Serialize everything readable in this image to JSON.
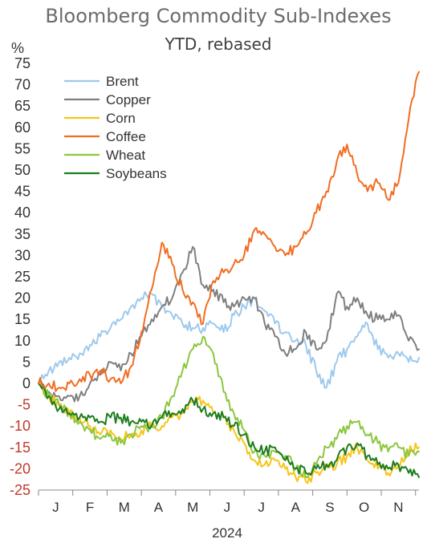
{
  "chart_data": {
    "type": "line",
    "title": "Bloomberg Commodity Sub-Indexes",
    "subtitle": "YTD, rebased",
    "ylabel": "%",
    "xlabel": "2024",
    "ylim": [
      -25,
      75
    ],
    "yticks": [
      75,
      70,
      65,
      60,
      55,
      50,
      45,
      40,
      35,
      30,
      25,
      20,
      15,
      10,
      5,
      0,
      -5,
      -10,
      -15,
      -20,
      -25
    ],
    "x_tick_labels": [
      "J",
      "F",
      "M",
      "A",
      "M",
      "J",
      "J",
      "A",
      "S",
      "O",
      "N"
    ],
    "negative_tick_color": "#c0392b",
    "positive_tick_color": "#333333",
    "legend_position": "top-left",
    "grid": false,
    "x_unit": "months since 1 Jan 2024",
    "series": [
      {
        "name": "Brent",
        "color": "#9ec9ec",
        "points": [
          [
            0,
            0
          ],
          [
            0.3,
            3
          ],
          [
            0.6,
            5
          ],
          [
            0.9,
            6
          ],
          [
            1.2,
            7
          ],
          [
            1.5,
            9
          ],
          [
            1.8,
            11
          ],
          [
            2.1,
            13
          ],
          [
            2.4,
            15
          ],
          [
            2.7,
            18
          ],
          [
            3.0,
            20
          ],
          [
            3.3,
            21
          ],
          [
            3.6,
            18
          ],
          [
            3.9,
            16
          ],
          [
            4.2,
            14
          ],
          [
            4.5,
            13
          ],
          [
            4.8,
            13
          ],
          [
            5.1,
            14
          ],
          [
            5.4,
            12
          ],
          [
            5.7,
            16
          ],
          [
            6.0,
            18
          ],
          [
            6.3,
            20
          ],
          [
            6.6,
            17
          ],
          [
            6.9,
            14
          ],
          [
            7.2,
            12
          ],
          [
            7.5,
            10
          ],
          [
            7.8,
            9
          ],
          [
            8.1,
            3
          ],
          [
            8.4,
            -1
          ],
          [
            8.7,
            5
          ],
          [
            9.0,
            8
          ],
          [
            9.3,
            11
          ],
          [
            9.6,
            14
          ],
          [
            9.9,
            8
          ],
          [
            10.2,
            6
          ],
          [
            10.5,
            7
          ],
          [
            10.8,
            5
          ],
          [
            11.1,
            6
          ]
        ]
      },
      {
        "name": "Copper",
        "color": "#7f7f7f",
        "points": [
          [
            0,
            0
          ],
          [
            0.3,
            -2
          ],
          [
            0.6,
            -3
          ],
          [
            0.9,
            -3
          ],
          [
            1.2,
            -3
          ],
          [
            1.5,
            0
          ],
          [
            1.8,
            2
          ],
          [
            2.1,
            5
          ],
          [
            2.4,
            3
          ],
          [
            2.7,
            7
          ],
          [
            3.0,
            11
          ],
          [
            3.3,
            15
          ],
          [
            3.6,
            18
          ],
          [
            3.9,
            20
          ],
          [
            4.2,
            26
          ],
          [
            4.5,
            32
          ],
          [
            4.8,
            23
          ],
          [
            5.1,
            22
          ],
          [
            5.4,
            19
          ],
          [
            5.7,
            18
          ],
          [
            6.0,
            20
          ],
          [
            6.3,
            20
          ],
          [
            6.6,
            14
          ],
          [
            6.9,
            11
          ],
          [
            7.2,
            7
          ],
          [
            7.5,
            8
          ],
          [
            7.8,
            12
          ],
          [
            8.1,
            8
          ],
          [
            8.4,
            10
          ],
          [
            8.7,
            21
          ],
          [
            9.0,
            18
          ],
          [
            9.3,
            20
          ],
          [
            9.6,
            16
          ],
          [
            9.9,
            15
          ],
          [
            10.2,
            15
          ],
          [
            10.5,
            16
          ],
          [
            10.8,
            10
          ],
          [
            11.1,
            8
          ]
        ]
      },
      {
        "name": "Corn",
        "color": "#f5c518",
        "points": [
          [
            0,
            0
          ],
          [
            0.3,
            -3
          ],
          [
            0.6,
            -5
          ],
          [
            0.9,
            -7
          ],
          [
            1.2,
            -8
          ],
          [
            1.5,
            -10
          ],
          [
            1.8,
            -12
          ],
          [
            2.1,
            -11
          ],
          [
            2.4,
            -13
          ],
          [
            2.7,
            -12
          ],
          [
            3.0,
            -11
          ],
          [
            3.3,
            -10
          ],
          [
            3.6,
            -10
          ],
          [
            3.9,
            -8
          ],
          [
            4.2,
            -7
          ],
          [
            4.5,
            -4
          ],
          [
            4.8,
            -4
          ],
          [
            5.1,
            -7
          ],
          [
            5.4,
            -8
          ],
          [
            5.7,
            -11
          ],
          [
            6.0,
            -14
          ],
          [
            6.3,
            -18
          ],
          [
            6.6,
            -19
          ],
          [
            6.9,
            -18
          ],
          [
            7.2,
            -20
          ],
          [
            7.5,
            -22
          ],
          [
            7.8,
            -23
          ],
          [
            8.1,
            -21
          ],
          [
            8.4,
            -19
          ],
          [
            8.7,
            -19
          ],
          [
            9.0,
            -17
          ],
          [
            9.3,
            -15
          ],
          [
            9.6,
            -18
          ],
          [
            9.9,
            -20
          ],
          [
            10.2,
            -21
          ],
          [
            10.5,
            -19
          ],
          [
            10.8,
            -16
          ],
          [
            11.1,
            -15
          ]
        ]
      },
      {
        "name": "Coffee",
        "color": "#f26d21",
        "points": [
          [
            0,
            0
          ],
          [
            0.3,
            0
          ],
          [
            0.6,
            -1
          ],
          [
            0.9,
            0
          ],
          [
            1.2,
            1
          ],
          [
            1.5,
            2
          ],
          [
            1.8,
            3
          ],
          [
            2.1,
            1
          ],
          [
            2.4,
            0
          ],
          [
            2.7,
            4
          ],
          [
            3.0,
            12
          ],
          [
            3.3,
            22
          ],
          [
            3.6,
            33
          ],
          [
            3.9,
            28
          ],
          [
            4.2,
            22
          ],
          [
            4.5,
            19
          ],
          [
            4.8,
            14
          ],
          [
            5.1,
            24
          ],
          [
            5.4,
            26
          ],
          [
            5.7,
            28
          ],
          [
            6.0,
            30
          ],
          [
            6.3,
            36
          ],
          [
            6.6,
            35
          ],
          [
            6.9,
            32
          ],
          [
            7.2,
            30
          ],
          [
            7.5,
            32
          ],
          [
            7.8,
            35
          ],
          [
            8.1,
            40
          ],
          [
            8.4,
            45
          ],
          [
            8.7,
            52
          ],
          [
            9.0,
            56
          ],
          [
            9.3,
            49
          ],
          [
            9.6,
            45
          ],
          [
            9.9,
            47
          ],
          [
            10.2,
            43
          ],
          [
            10.5,
            47
          ],
          [
            10.8,
            62
          ],
          [
            11.1,
            73
          ]
        ]
      },
      {
        "name": "Wheat",
        "color": "#8dc63f",
        "points": [
          [
            0,
            0
          ],
          [
            0.3,
            -3
          ],
          [
            0.6,
            -5
          ],
          [
            0.9,
            -7
          ],
          [
            1.2,
            -9
          ],
          [
            1.5,
            -11
          ],
          [
            1.8,
            -13
          ],
          [
            2.1,
            -12
          ],
          [
            2.4,
            -14
          ],
          [
            2.7,
            -12
          ],
          [
            3.0,
            -10
          ],
          [
            3.3,
            -10
          ],
          [
            3.6,
            -8
          ],
          [
            3.9,
            -3
          ],
          [
            4.2,
            3
          ],
          [
            4.5,
            8
          ],
          [
            4.8,
            11
          ],
          [
            5.1,
            7
          ],
          [
            5.4,
            -2
          ],
          [
            5.7,
            -7
          ],
          [
            6.0,
            -11
          ],
          [
            6.3,
            -16
          ],
          [
            6.6,
            -17
          ],
          [
            6.9,
            -16
          ],
          [
            7.2,
            -17
          ],
          [
            7.5,
            -20
          ],
          [
            7.8,
            -22
          ],
          [
            8.1,
            -19
          ],
          [
            8.4,
            -15
          ],
          [
            8.7,
            -13
          ],
          [
            9.0,
            -10
          ],
          [
            9.3,
            -9
          ],
          [
            9.6,
            -12
          ],
          [
            9.9,
            -14
          ],
          [
            10.2,
            -16
          ],
          [
            10.5,
            -15
          ],
          [
            10.8,
            -17
          ],
          [
            11.1,
            -16
          ]
        ]
      },
      {
        "name": "Soybeans",
        "color": "#1e7d1e",
        "points": [
          [
            0,
            0
          ],
          [
            0.3,
            -3
          ],
          [
            0.6,
            -6
          ],
          [
            0.9,
            -7
          ],
          [
            1.2,
            -8
          ],
          [
            1.5,
            -8
          ],
          [
            1.8,
            -9
          ],
          [
            2.1,
            -8
          ],
          [
            2.4,
            -8
          ],
          [
            2.7,
            -9
          ],
          [
            3.0,
            -9
          ],
          [
            3.3,
            -10
          ],
          [
            3.6,
            -8
          ],
          [
            3.9,
            -7
          ],
          [
            4.2,
            -6
          ],
          [
            4.5,
            -4
          ],
          [
            4.8,
            -6
          ],
          [
            5.1,
            -7
          ],
          [
            5.4,
            -8
          ],
          [
            5.7,
            -10
          ],
          [
            6.0,
            -12
          ],
          [
            6.3,
            -15
          ],
          [
            6.6,
            -16
          ],
          [
            6.9,
            -15
          ],
          [
            7.2,
            -18
          ],
          [
            7.5,
            -20
          ],
          [
            7.8,
            -21
          ],
          [
            8.1,
            -20
          ],
          [
            8.4,
            -19
          ],
          [
            8.7,
            -18
          ],
          [
            9.0,
            -15
          ],
          [
            9.3,
            -14
          ],
          [
            9.6,
            -17
          ],
          [
            9.9,
            -19
          ],
          [
            10.2,
            -20
          ],
          [
            10.5,
            -19
          ],
          [
            10.8,
            -21
          ],
          [
            11.1,
            -22
          ]
        ]
      }
    ]
  }
}
